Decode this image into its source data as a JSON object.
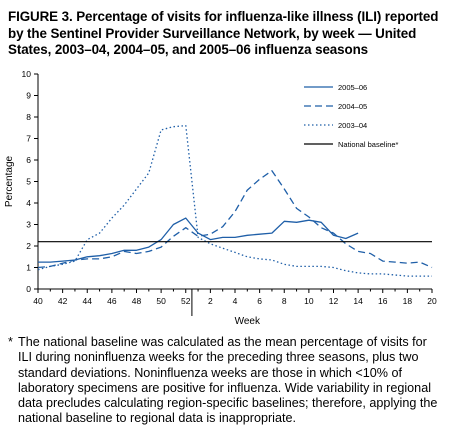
{
  "title": "FIGURE 3. Percentage of visits for influenza-like illness (ILI) reported by the Sentinel Provider Surveillance Network, by week — United States, 2003–04, 2004–05, and 2005–06 influenza seasons",
  "footnote": {
    "marker": "*",
    "text": "The national baseline was calculated as the mean percentage of visits for ILI during noninfluenza weeks for the preceding three seasons, plus two standard deviations. Noninfluenza weeks are those in which <10% of laboratory specimens are positive for influenza. Wide variability in regional data precludes calculating region-specific baselines; therefore, applying the national baseline to regional data is inappropriate."
  },
  "chart_data": {
    "type": "line",
    "xlabel": "Week",
    "ylabel": "Percentage",
    "ylim": [
      0,
      10
    ],
    "yticks": [
      0,
      1,
      2,
      3,
      4,
      5,
      6,
      7,
      8,
      9,
      10
    ],
    "week_labels": [
      "40",
      "42",
      "44",
      "46",
      "48",
      "50",
      "52",
      "2",
      "4",
      "6",
      "8",
      "10",
      "12",
      "14",
      "16",
      "18",
      "20"
    ],
    "x_note": "x values are sequential week positions: 40–52 are weeks 40–52, 53–72 are weeks 1–20 of the following year",
    "x_range": [
      40,
      72
    ],
    "grid": false,
    "legend_position": "top-right",
    "colors": {
      "series": "#1f5fa8",
      "baseline": "#000000"
    },
    "series": [
      {
        "name": "2005–06",
        "style": "solid",
        "x": [
          40,
          41,
          42,
          43,
          44,
          45,
          46,
          47,
          48,
          49,
          50,
          51,
          52,
          53,
          54,
          55,
          56,
          57,
          58,
          59,
          60,
          61,
          62,
          63,
          64,
          65,
          66
        ],
        "values": [
          1.25,
          1.25,
          1.3,
          1.35,
          1.5,
          1.55,
          1.65,
          1.8,
          1.8,
          1.95,
          2.3,
          3.0,
          3.3,
          2.6,
          2.3,
          2.4,
          2.4,
          2.5,
          2.55,
          2.6,
          3.15,
          3.1,
          3.2,
          3.1,
          2.5,
          2.35,
          2.6
        ]
      },
      {
        "name": "2004–05",
        "style": "dashed",
        "x": [
          40,
          41,
          42,
          43,
          44,
          45,
          46,
          47,
          48,
          49,
          50,
          51,
          52,
          53,
          54,
          55,
          56,
          57,
          58,
          59,
          60,
          61,
          62,
          63,
          64,
          65,
          66,
          67,
          68,
          69,
          70,
          71,
          72
        ],
        "values": [
          1.0,
          1.05,
          1.2,
          1.35,
          1.4,
          1.4,
          1.5,
          1.75,
          1.65,
          1.75,
          1.95,
          2.45,
          2.85,
          2.45,
          2.55,
          2.9,
          3.6,
          4.6,
          5.1,
          5.5,
          4.65,
          3.75,
          3.35,
          2.85,
          2.6,
          2.1,
          1.75,
          1.65,
          1.3,
          1.25,
          1.2,
          1.25,
          1.0
        ]
      },
      {
        "name": "2003–04",
        "style": "dotted",
        "x": [
          40,
          41,
          42,
          43,
          44,
          45,
          46,
          47,
          48,
          49,
          50,
          51,
          52,
          53,
          54,
          55,
          56,
          57,
          58,
          59,
          60,
          61,
          62,
          63,
          64,
          65,
          66,
          67,
          68,
          69,
          70,
          71,
          72
        ],
        "values": [
          0.9,
          1.05,
          1.15,
          1.3,
          2.3,
          2.6,
          3.3,
          3.9,
          4.65,
          5.4,
          7.4,
          7.55,
          7.6,
          2.4,
          2.1,
          1.9,
          1.7,
          1.5,
          1.4,
          1.35,
          1.15,
          1.05,
          1.05,
          1.05,
          1.0,
          0.85,
          0.75,
          0.7,
          0.7,
          0.65,
          0.6,
          0.6,
          0.6
        ]
      },
      {
        "name": "National baseline*",
        "style": "baseline",
        "x": [
          40,
          72
        ],
        "values": [
          2.2,
          2.2
        ]
      }
    ]
  }
}
